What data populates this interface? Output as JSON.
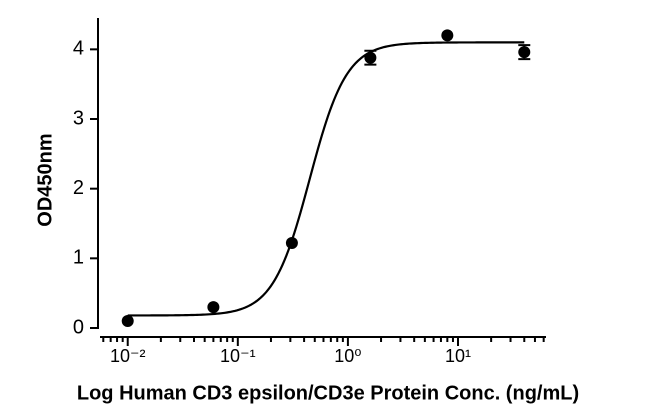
{
  "chart_data": {
    "type": "scatter",
    "xlabel": "Log Human CD3 epsilon/CD3e Protein Conc. (ng/mL)",
    "ylabel": "OD450nm",
    "x": [
      0.01,
      0.06,
      0.31,
      1.6,
      8,
      40
    ],
    "series": [
      {
        "color": "#000000",
        "values": [
          0.1,
          0.3,
          1.22,
          3.88,
          4.2,
          3.96
        ],
        "errors": [
          null,
          null,
          null,
          0.1,
          null,
          0.1
        ]
      }
    ],
    "curve": {
      "bottom": 0.18,
      "top": 4.1,
      "ec50": 0.45,
      "hill": 2.6
    },
    "xscale": "log",
    "xlim": [
      0.0056,
      63
    ],
    "xticks": [
      {
        "value": 0.01,
        "label": "10⁻²"
      },
      {
        "value": 0.1,
        "label": "10⁻¹"
      },
      {
        "value": 1,
        "label": "10⁰"
      },
      {
        "value": 10,
        "label": "10¹"
      }
    ],
    "xminorticks": [
      0.006,
      0.007,
      0.008,
      0.009,
      0.02,
      0.03,
      0.04,
      0.05,
      0.06,
      0.07,
      0.08,
      0.09,
      0.2,
      0.3,
      0.4,
      0.5,
      0.6,
      0.7,
      0.8,
      0.9,
      2,
      3,
      4,
      5,
      6,
      7,
      8,
      9,
      20,
      30,
      40,
      50,
      60
    ],
    "ylim": [
      0,
      4.45
    ],
    "yticks": [
      0,
      1,
      2,
      3,
      4
    ]
  }
}
